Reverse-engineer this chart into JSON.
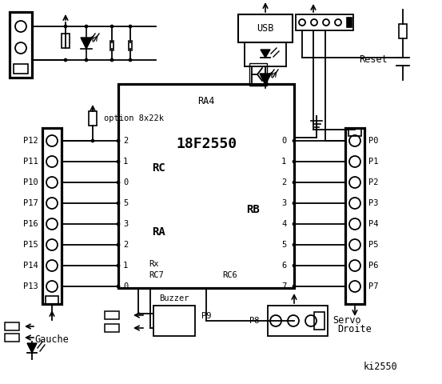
{
  "bg_color": "#ffffff",
  "title": "18F2550",
  "ra4_label": "RA4",
  "rc_label": "RC",
  "ra_label": "RA",
  "rb_label": "RB",
  "rx_label": "Rx",
  "rc7_label": "RC7",
  "rc6_label": "RC6",
  "left_labels": [
    "P12",
    "P11",
    "P10",
    "P17",
    "P16",
    "P15",
    "P14",
    "P13"
  ],
  "right_labels": [
    "P0",
    "P1",
    "P2",
    "P3",
    "P4",
    "P5",
    "P6",
    "P7"
  ],
  "rc_pin_nums": [
    "2",
    "1",
    "0",
    "5",
    "3",
    "2",
    "1",
    "0"
  ],
  "rb_pin_nums": [
    "0",
    "1",
    "2",
    "3",
    "4",
    "5",
    "6",
    "7"
  ],
  "gauche_label": "Gauche",
  "droite_label": "Droite",
  "reset_label": "Reset",
  "usb_label": "USB",
  "option_label": "option 8x22k",
  "buzzer_label": "Buzzer",
  "servo_label": "Servo",
  "p8_label": "P8",
  "p9_label": "P9",
  "ki_label": "ki2550",
  "lw": 1.3,
  "lw_thick": 2.3,
  "fs": 8.5,
  "fs_small": 7.5,
  "fs_title": 13
}
